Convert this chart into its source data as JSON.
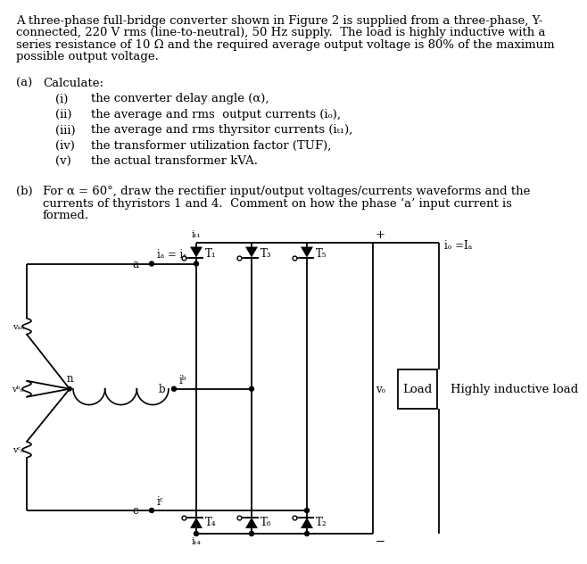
{
  "bg": "#ffffff",
  "tc": "#000000",
  "fs": 9.5,
  "fs_s": 8.5,
  "title_lines": [
    "A three-phase full-bridge converter shown in Figure 2 is supplied from a three-phase, Y-",
    "connected, 220 V rms (line-to-neutral), 50 Hz supply.  The load is highly inductive with a",
    "series resistance of 10 Ω and the required average output voltage is 80% of the maximum",
    "possible output voltage."
  ],
  "items_a": [
    [
      "(i)",
      "the converter delay angle (α),"
    ],
    [
      "(ii)",
      "the average and rms  output currents (iₒ),"
    ],
    [
      "(iii)",
      "the average and rms thyrsitor currents (iₜ₁),"
    ],
    [
      "(iv)",
      "the transformer utilization factor (TUF),"
    ],
    [
      "(v)",
      "the actual transformer kVA."
    ]
  ],
  "b_lines": [
    "For α = 60°, draw the rectifier input/output voltages/currents waveforms and the",
    "currents of thyristors 1 and 4.  Comment on how the phase ‘a’ input current is",
    "formed."
  ]
}
